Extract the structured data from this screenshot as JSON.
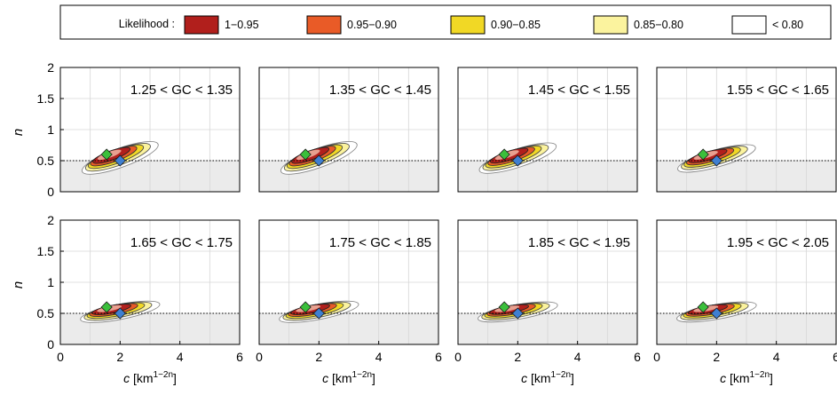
{
  "legend": {
    "title": "Likelihood :",
    "entries": [
      {
        "label": "1−0.95",
        "color": "#b11f1c"
      },
      {
        "label": "0.95−0.90",
        "color": "#e95b27"
      },
      {
        "label": "0.90−0.85",
        "color": "#f1d825"
      },
      {
        "label": "0.85−0.80",
        "color": "#fbf39e"
      },
      {
        "label": "< 0.80",
        "color": "#ffffff"
      }
    ]
  },
  "colors": {
    "shade": "#ebebeb",
    "grid": "#d6d6d6",
    "outer_contour": "#888888",
    "pink_core": "#e8a090",
    "green_marker": "#3bbf3b",
    "blue_marker": "#3f7fd1"
  },
  "chart_data": {
    "type": "contour",
    "xlabel": "c [km1−2n]",
    "ylabel": "n",
    "xlim": [
      0,
      6
    ],
    "ylim": [
      0,
      2
    ],
    "xticks": [
      "0",
      "2",
      "4",
      "6"
    ],
    "yticks": [
      "0",
      "0.5",
      "1",
      "1.5",
      "2"
    ],
    "reference_line_n": 0.5,
    "shaded_below_n": 0.5,
    "green_marker": {
      "c": 1.55,
      "n": 0.6
    },
    "blue_marker": {
      "c": 2.0,
      "n": 0.5
    },
    "panels": [
      {
        "label": "1.25 < GC < 1.35",
        "shape": 0.9
      },
      {
        "label": "1.35 < GC < 1.45",
        "shape": 0.9
      },
      {
        "label": "1.45 < GC < 1.55",
        "shape": 0.82
      },
      {
        "label": "1.55 < GC < 1.65",
        "shape": 0.72
      },
      {
        "label": "1.65 < GC < 1.75",
        "shape": 0.5
      },
      {
        "label": "1.75 < GC < 1.85",
        "shape": 0.5
      },
      {
        "label": "1.85 < GC < 1.95",
        "shape": 0.45
      },
      {
        "label": "1.95 < GC < 2.05",
        "shape": 0.45
      }
    ]
  }
}
